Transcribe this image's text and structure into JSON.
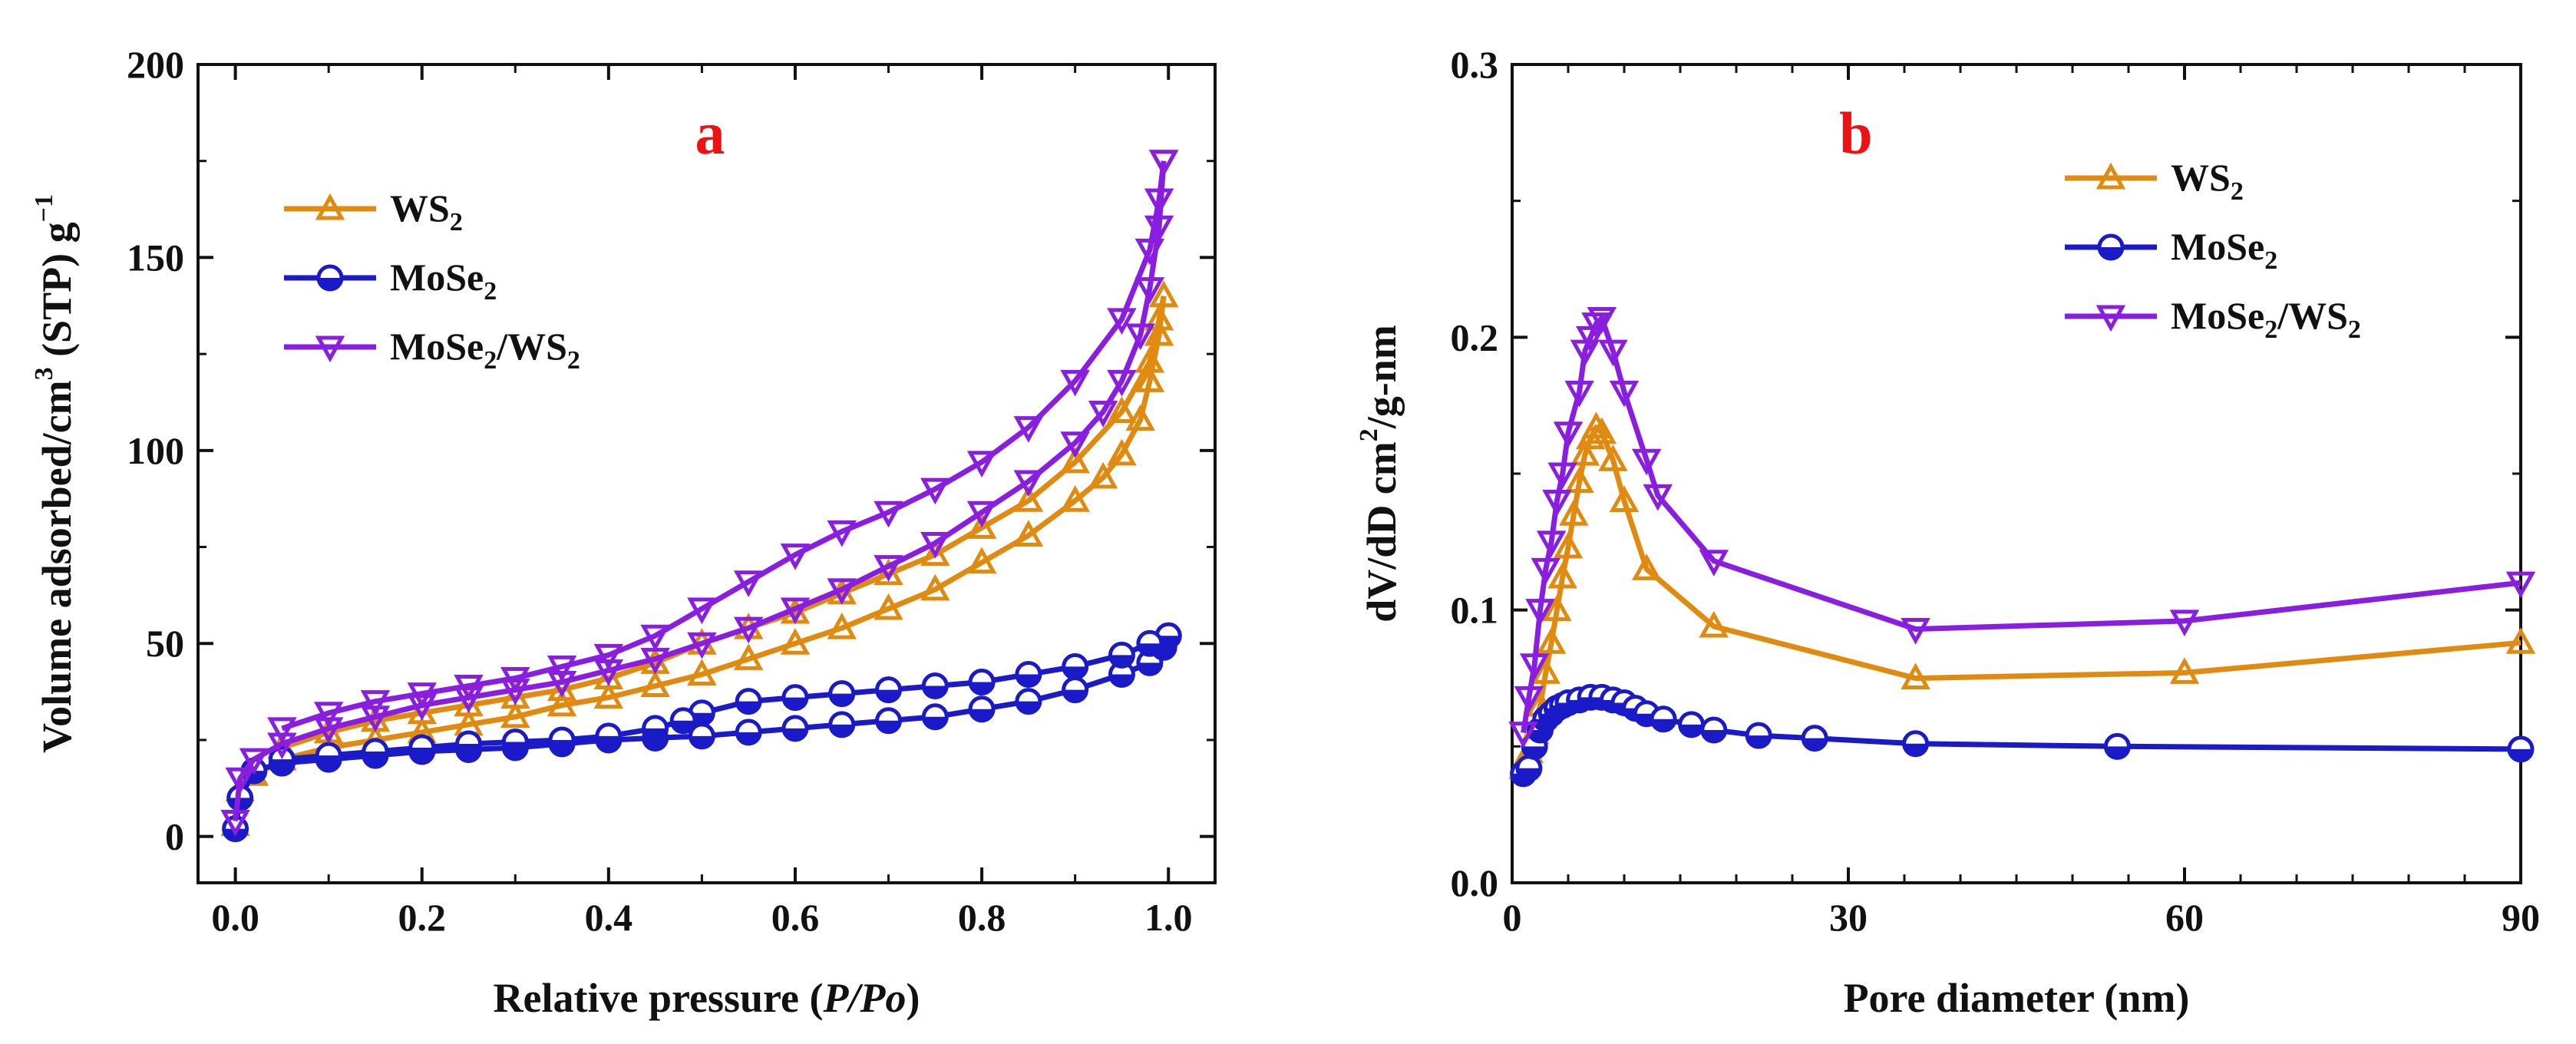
{
  "colors": {
    "ws2": "#e08a10",
    "mose2": "#1a1ac8",
    "mose2ws2": "#8a1ee0",
    "panel_label": "#ee1111"
  },
  "chart_data": [
    {
      "type": "line",
      "panel_label": "a",
      "xlabel_pre": "Relative pressure (",
      "xlabel_italic": "P/Po",
      "xlabel_post": ")",
      "ylabel_pre": "Volume adsorbed/cm",
      "ylabel_sup3": "3",
      "ylabel_mid": " (STP) g",
      "ylabel_supm1": "−1",
      "xlim": [
        -0.04,
        1.05
      ],
      "ylim": [
        -12,
        200
      ],
      "xticks": [
        0.0,
        0.2,
        0.4,
        0.6,
        0.8,
        1.0
      ],
      "xtick_labels": [
        "0.0",
        "0.2",
        "0.4",
        "0.6",
        "0.8",
        "1.0"
      ],
      "yticks": [
        0,
        50,
        100,
        150,
        200
      ],
      "ytick_labels": [
        "0",
        "50",
        "100",
        "150",
        "200"
      ],
      "legend": {
        "position": "top-left",
        "items": [
          {
            "key": "ws2",
            "base": "WS",
            "sub": "2"
          },
          {
            "key": "mose2",
            "base": "MoSe",
            "sub": "2"
          },
          {
            "key": "mose2ws2",
            "base": "MoSe",
            "sub": "2",
            "base2": "/WS",
            "sub2": "2"
          }
        ]
      },
      "series": [
        {
          "key": "ws2",
          "name": "WS2",
          "marker": "triangle-up",
          "adsorption": [
            [
              0.0,
              3
            ],
            [
              0.005,
              12
            ],
            [
              0.02,
              16
            ],
            [
              0.05,
              20
            ],
            [
              0.1,
              23
            ],
            [
              0.15,
              25
            ],
            [
              0.2,
              27
            ],
            [
              0.25,
              29
            ],
            [
              0.3,
              31
            ],
            [
              0.35,
              34
            ],
            [
              0.4,
              36
            ],
            [
              0.45,
              39
            ],
            [
              0.5,
              42
            ],
            [
              0.55,
              46
            ],
            [
              0.6,
              50
            ],
            [
              0.65,
              54
            ],
            [
              0.7,
              59
            ],
            [
              0.75,
              64
            ],
            [
              0.8,
              71
            ],
            [
              0.85,
              78
            ],
            [
              0.9,
              87
            ],
            [
              0.93,
              93
            ],
            [
              0.95,
              99
            ],
            [
              0.97,
              108
            ],
            [
              0.98,
              118
            ],
            [
              0.99,
              130
            ],
            [
              0.995,
              140
            ]
          ],
          "desorption": [
            [
              0.995,
              140
            ],
            [
              0.99,
              134
            ],
            [
              0.98,
              123
            ],
            [
              0.95,
              110
            ],
            [
              0.9,
              97
            ],
            [
              0.85,
              87
            ],
            [
              0.8,
              80
            ],
            [
              0.75,
              73
            ],
            [
              0.7,
              68
            ],
            [
              0.65,
              63
            ],
            [
              0.6,
              58
            ],
            [
              0.55,
              54
            ],
            [
              0.5,
              50
            ],
            [
              0.45,
              45
            ],
            [
              0.4,
              41
            ],
            [
              0.35,
              38
            ],
            [
              0.3,
              36
            ],
            [
              0.25,
              34
            ],
            [
              0.2,
              32
            ],
            [
              0.15,
              30
            ],
            [
              0.1,
              27
            ],
            [
              0.05,
              23
            ]
          ]
        },
        {
          "key": "mose2",
          "name": "MoSe2",
          "marker": "circle-half",
          "adsorption": [
            [
              0.0,
              2
            ],
            [
              0.005,
              10
            ],
            [
              0.02,
              17
            ],
            [
              0.05,
              19
            ],
            [
              0.1,
              20
            ],
            [
              0.15,
              21
            ],
            [
              0.2,
              22
            ],
            [
              0.25,
              22.5
            ],
            [
              0.3,
              23
            ],
            [
              0.35,
              24
            ],
            [
              0.4,
              25
            ],
            [
              0.45,
              25.5
            ],
            [
              0.5,
              26
            ],
            [
              0.55,
              27
            ],
            [
              0.6,
              28
            ],
            [
              0.65,
              29
            ],
            [
              0.7,
              30
            ],
            [
              0.75,
              31
            ],
            [
              0.8,
              33
            ],
            [
              0.85,
              35
            ],
            [
              0.9,
              38
            ],
            [
              0.95,
              42
            ],
            [
              0.98,
              45
            ],
            [
              0.995,
              49
            ],
            [
              1.0,
              52
            ]
          ],
          "desorption": [
            [
              1.0,
              52
            ],
            [
              0.98,
              50
            ],
            [
              0.95,
              47
            ],
            [
              0.9,
              44
            ],
            [
              0.85,
              42
            ],
            [
              0.8,
              40
            ],
            [
              0.75,
              39
            ],
            [
              0.7,
              38
            ],
            [
              0.65,
              37
            ],
            [
              0.6,
              36
            ],
            [
              0.55,
              35
            ],
            [
              0.5,
              32
            ],
            [
              0.48,
              30
            ],
            [
              0.45,
              28
            ],
            [
              0.4,
              26
            ],
            [
              0.35,
              25
            ],
            [
              0.3,
              24.5
            ],
            [
              0.25,
              24
            ],
            [
              0.2,
              23
            ],
            [
              0.15,
              22
            ],
            [
              0.1,
              21
            ],
            [
              0.05,
              20
            ]
          ]
        },
        {
          "key": "mose2ws2",
          "name": "MoSe2/WS2",
          "marker": "triangle-down",
          "adsorption": [
            [
              0.0,
              4
            ],
            [
              0.005,
              15
            ],
            [
              0.02,
              20
            ],
            [
              0.05,
              24
            ],
            [
              0.1,
              28
            ],
            [
              0.15,
              31
            ],
            [
              0.2,
              34
            ],
            [
              0.25,
              36
            ],
            [
              0.3,
              38
            ],
            [
              0.35,
              40
            ],
            [
              0.4,
              43
            ],
            [
              0.45,
              46
            ],
            [
              0.5,
              50
            ],
            [
              0.55,
              54
            ],
            [
              0.6,
              59
            ],
            [
              0.65,
              64
            ],
            [
              0.7,
              70
            ],
            [
              0.75,
              76
            ],
            [
              0.8,
              84
            ],
            [
              0.85,
              92
            ],
            [
              0.9,
              102
            ],
            [
              0.93,
              110
            ],
            [
              0.95,
              118
            ],
            [
              0.97,
              130
            ],
            [
              0.98,
              142
            ],
            [
              0.99,
              158
            ],
            [
              0.995,
              175
            ]
          ],
          "desorption": [
            [
              0.995,
              175
            ],
            [
              0.99,
              165
            ],
            [
              0.98,
              152
            ],
            [
              0.95,
              134
            ],
            [
              0.9,
              118
            ],
            [
              0.85,
              106
            ],
            [
              0.8,
              97
            ],
            [
              0.75,
              90
            ],
            [
              0.7,
              84
            ],
            [
              0.65,
              79
            ],
            [
              0.6,
              73
            ],
            [
              0.55,
              66
            ],
            [
              0.5,
              59
            ],
            [
              0.45,
              52
            ],
            [
              0.4,
              47
            ],
            [
              0.35,
              44
            ],
            [
              0.3,
              41
            ],
            [
              0.25,
              39
            ],
            [
              0.2,
              37
            ],
            [
              0.15,
              35
            ],
            [
              0.1,
              32
            ],
            [
              0.05,
              28
            ]
          ]
        }
      ]
    },
    {
      "type": "line",
      "panel_label": "b",
      "xlabel": "Pore diameter (nm)",
      "ylabel_pre": "dV/dD cm",
      "ylabel_sup": "2",
      "ylabel_post": "/g-nm",
      "xlim": [
        0,
        90
      ],
      "ylim": [
        0,
        0.3
      ],
      "xticks": [
        0,
        30,
        60,
        90
      ],
      "xtick_labels": [
        "0",
        "30",
        "60",
        "90"
      ],
      "yticks": [
        0.0,
        0.1,
        0.2,
        0.3
      ],
      "ytick_labels": [
        "0.0",
        "0.1",
        "0.2",
        "0.3"
      ],
      "legend": {
        "position": "top-right",
        "items": [
          {
            "key": "ws2",
            "base": "WS",
            "sub": "2"
          },
          {
            "key": "mose2",
            "base": "MoSe",
            "sub": "2"
          },
          {
            "key": "mose2ws2",
            "base": "MoSe",
            "sub": "2",
            "base2": "/WS",
            "sub2": "2"
          }
        ]
      },
      "series": [
        {
          "key": "ws2",
          "name": "WS2",
          "marker": "triangle-up",
          "points": [
            [
              1,
              0.042
            ],
            [
              1.5,
              0.048
            ],
            [
              2,
              0.055
            ],
            [
              2.5,
              0.065
            ],
            [
              3,
              0.077
            ],
            [
              3.5,
              0.088
            ],
            [
              4,
              0.1
            ],
            [
              4.5,
              0.112
            ],
            [
              5,
              0.123
            ],
            [
              5.5,
              0.135
            ],
            [
              6,
              0.147
            ],
            [
              6.5,
              0.157
            ],
            [
              7,
              0.163
            ],
            [
              7.5,
              0.167
            ],
            [
              8,
              0.165
            ],
            [
              9,
              0.155
            ],
            [
              10,
              0.14
            ],
            [
              12,
              0.115
            ],
            [
              18,
              0.094
            ],
            [
              36,
              0.075
            ],
            [
              60,
              0.077
            ],
            [
              90,
              0.088
            ]
          ]
        },
        {
          "key": "mose2",
          "name": "MoSe2",
          "marker": "circle-half",
          "points": [
            [
              1,
              0.04
            ],
            [
              1.5,
              0.042
            ],
            [
              2,
              0.05
            ],
            [
              2.5,
              0.056
            ],
            [
              3,
              0.06
            ],
            [
              3.5,
              0.062
            ],
            [
              4,
              0.064
            ],
            [
              4.5,
              0.065
            ],
            [
              5,
              0.066
            ],
            [
              6,
              0.067
            ],
            [
              7,
              0.068
            ],
            [
              8,
              0.068
            ],
            [
              9,
              0.067
            ],
            [
              10,
              0.066
            ],
            [
              11,
              0.064
            ],
            [
              12,
              0.062
            ],
            [
              13.5,
              0.06
            ],
            [
              16,
              0.058
            ],
            [
              18,
              0.056
            ],
            [
              22,
              0.054
            ],
            [
              27,
              0.053
            ],
            [
              36,
              0.051
            ],
            [
              54,
              0.05
            ],
            [
              90,
              0.049
            ]
          ]
        },
        {
          "key": "mose2ws2",
          "name": "MoSe2/WS2",
          "marker": "triangle-down",
          "points": [
            [
              1,
              0.055
            ],
            [
              1.5,
              0.068
            ],
            [
              2,
              0.08
            ],
            [
              2.5,
              0.1
            ],
            [
              3,
              0.115
            ],
            [
              3.5,
              0.125
            ],
            [
              4,
              0.14
            ],
            [
              4.5,
              0.15
            ],
            [
              5,
              0.165
            ],
            [
              6,
              0.18
            ],
            [
              6.5,
              0.195
            ],
            [
              7,
              0.2
            ],
            [
              7.5,
              0.205
            ],
            [
              8,
              0.207
            ],
            [
              9,
              0.195
            ],
            [
              10,
              0.18
            ],
            [
              12,
              0.155
            ],
            [
              13,
              0.142
            ],
            [
              18,
              0.118
            ],
            [
              36,
              0.093
            ],
            [
              60,
              0.096
            ],
            [
              90,
              0.11
            ]
          ]
        }
      ]
    }
  ]
}
